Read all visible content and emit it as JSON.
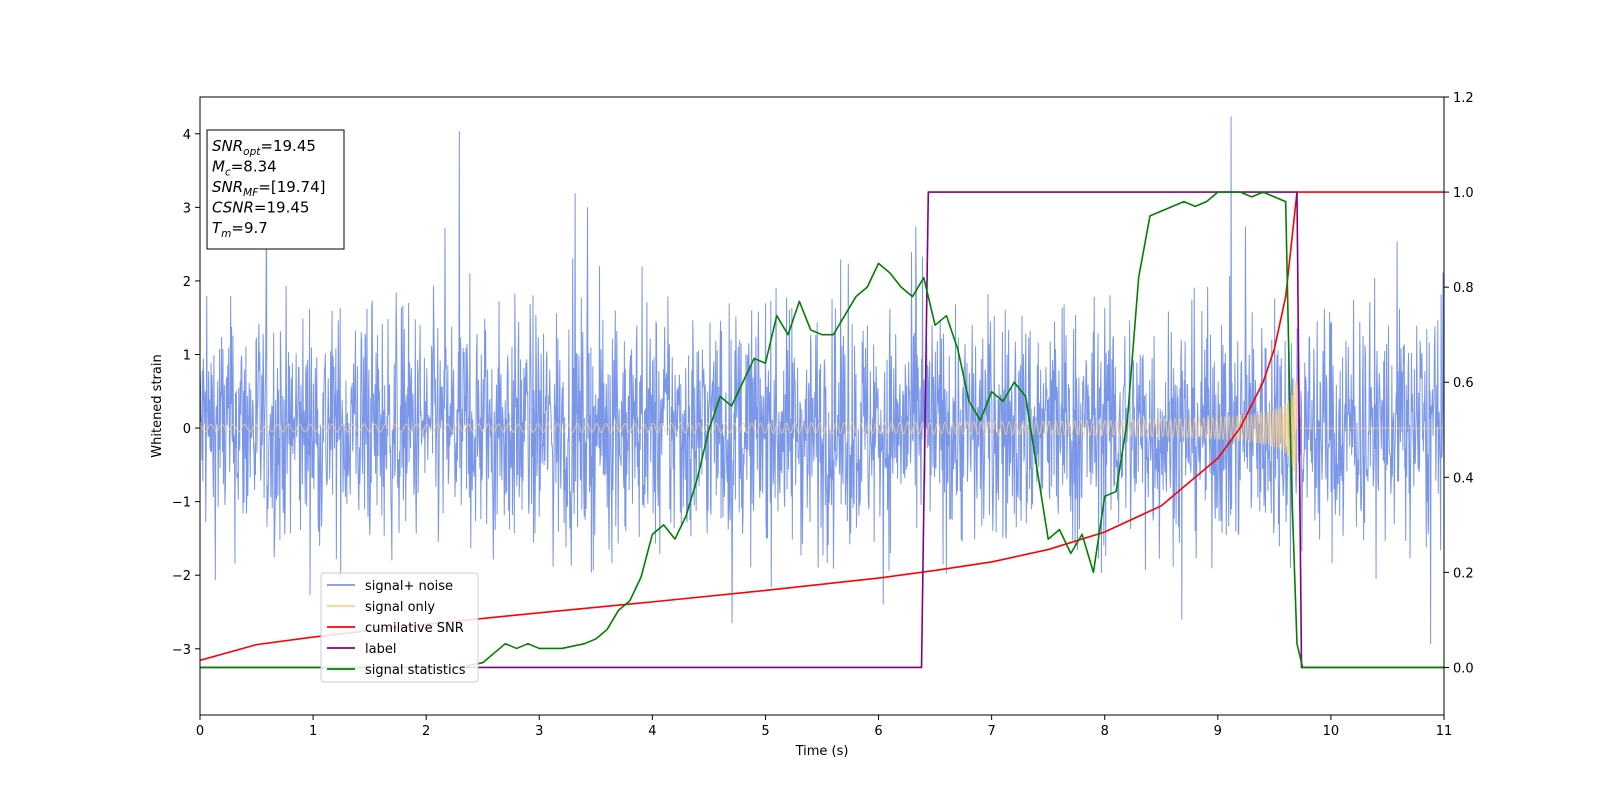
{
  "chart_data": {
    "type": "line",
    "xlabel": "Time (s)",
    "ylabel": "Whitened strain",
    "xlim": [
      0,
      11
    ],
    "ylim": [
      -3.9,
      4.5
    ],
    "y2lim": [
      -0.1,
      1.2
    ],
    "x_ticks": [
      "0",
      "1",
      "2",
      "3",
      "4",
      "5",
      "6",
      "7",
      "8",
      "9",
      "10",
      "11"
    ],
    "y_ticks": [
      "−3",
      "−2",
      "−1",
      "0",
      "1",
      "2",
      "3",
      "4"
    ],
    "y2_ticks": [
      "0.0",
      "0.2",
      "0.4",
      "0.6",
      "0.8",
      "1.0",
      "1.2"
    ],
    "info_box": [
      {
        "main": "SNR",
        "sub": "opt",
        "value": "=19.45"
      },
      {
        "main": "M",
        "sub": "c",
        "value": "=8.34"
      },
      {
        "main": "SNR",
        "sub": "MF",
        "value": "=[19.74]"
      },
      {
        "main": "CSNR",
        "sub": "",
        "value": "=19.45"
      },
      {
        "main": "T",
        "sub": "m",
        "value": "=9.7"
      }
    ],
    "legend": {
      "placement": "lower-left",
      "entries": [
        {
          "label": "signal+ noise",
          "color": "#7a96e8"
        },
        {
          "label": "signal only",
          "color": "#ffd080"
        },
        {
          "label": "cumilative SNR",
          "color": "#ff0000"
        },
        {
          "label": "label",
          "color": "#800080"
        },
        {
          "label": "signal statistics",
          "color": "#008000"
        }
      ]
    },
    "series": [
      {
        "name": "signal+ noise",
        "axis": "left",
        "color": "#7a96e8",
        "kind": "noise",
        "sigma": 0.78,
        "x_range": [
          0,
          11
        ]
      },
      {
        "name": "signal only",
        "axis": "left",
        "color": "#ffd080",
        "kind": "chirp",
        "t_merge": 9.7,
        "base_amp": 0.05
      },
      {
        "name": "cumilative SNR",
        "axis": "right",
        "color": "#ff0000",
        "x": [
          0,
          0.5,
          1,
          2,
          3,
          4,
          5,
          6,
          6.5,
          7,
          7.5,
          8,
          8.5,
          9,
          9.2,
          9.4,
          9.5,
          9.6,
          9.7,
          11
        ],
        "y": [
          0.015,
          0.048,
          0.064,
          0.091,
          0.115,
          0.138,
          0.162,
          0.188,
          0.204,
          0.222,
          0.248,
          0.285,
          0.34,
          0.44,
          0.505,
          0.6,
          0.67,
          0.78,
          1.0,
          1.0
        ]
      },
      {
        "name": "label",
        "axis": "right",
        "color": "#800080",
        "x": [
          0,
          6.38,
          6.44,
          9.7,
          9.74,
          11
        ],
        "y": [
          0,
          0,
          1,
          1,
          0,
          0
        ]
      },
      {
        "name": "signal statistics",
        "axis": "right",
        "color": "#008000",
        "x": [
          0,
          0.5,
          1,
          1.5,
          2,
          2.3,
          2.5,
          2.6,
          2.7,
          2.8,
          2.9,
          3.0,
          3.2,
          3.4,
          3.5,
          3.6,
          3.7,
          3.8,
          3.9,
          4.0,
          4.1,
          4.2,
          4.3,
          4.4,
          4.5,
          4.6,
          4.7,
          4.8,
          4.9,
          5.0,
          5.1,
          5.2,
          5.3,
          5.4,
          5.5,
          5.6,
          5.7,
          5.8,
          5.9,
          6.0,
          6.1,
          6.2,
          6.3,
          6.4,
          6.5,
          6.6,
          6.7,
          6.8,
          6.9,
          7.0,
          7.1,
          7.2,
          7.3,
          7.4,
          7.5,
          7.6,
          7.7,
          7.8,
          7.9,
          8.0,
          8.1,
          8.2,
          8.3,
          8.4,
          8.5,
          8.6,
          8.7,
          8.8,
          8.9,
          9.0,
          9.1,
          9.2,
          9.3,
          9.4,
          9.5,
          9.6,
          9.65,
          9.7,
          9.75,
          10,
          10.5,
          11
        ],
        "y": [
          0.0,
          0.0,
          0.0,
          0.0,
          0.0,
          0.0,
          0.01,
          0.03,
          0.05,
          0.04,
          0.05,
          0.04,
          0.04,
          0.05,
          0.06,
          0.08,
          0.12,
          0.14,
          0.19,
          0.28,
          0.3,
          0.27,
          0.32,
          0.4,
          0.5,
          0.57,
          0.55,
          0.6,
          0.65,
          0.64,
          0.74,
          0.7,
          0.77,
          0.71,
          0.7,
          0.7,
          0.74,
          0.78,
          0.8,
          0.85,
          0.83,
          0.8,
          0.78,
          0.82,
          0.72,
          0.74,
          0.67,
          0.56,
          0.52,
          0.58,
          0.56,
          0.6,
          0.57,
          0.42,
          0.27,
          0.29,
          0.24,
          0.28,
          0.2,
          0.36,
          0.37,
          0.52,
          0.82,
          0.95,
          0.96,
          0.97,
          0.98,
          0.97,
          0.98,
          1.0,
          1.0,
          1.0,
          0.99,
          1.0,
          0.99,
          0.98,
          0.4,
          0.05,
          0.0,
          0.0,
          0.0,
          0.0
        ]
      }
    ]
  }
}
